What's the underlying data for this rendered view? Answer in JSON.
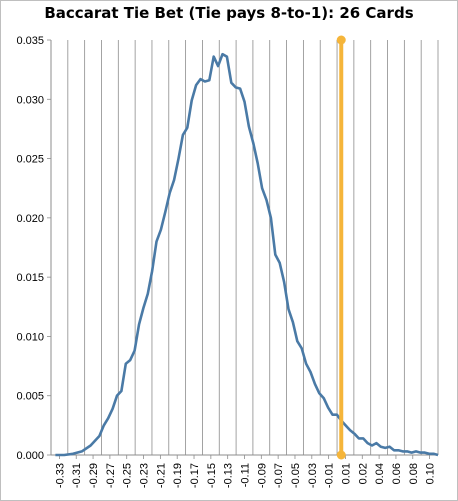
{
  "chart_data": {
    "type": "line",
    "title": "Baccarat Tie Bet (Tie pays 8-to-1): 26 Cards",
    "xlabel": "",
    "ylabel": "",
    "xlim": [
      -0.335,
      0.105
    ],
    "ylim": [
      0,
      0.035
    ],
    "yticks": [
      "0.000",
      "0.005",
      "0.010",
      "0.015",
      "0.020",
      "0.025",
      "0.030",
      "0.035"
    ],
    "xticks": [
      "-0.33",
      "-0.31",
      "-0.29",
      "-0.27",
      "-0.25",
      "-0.23",
      "-0.21",
      "-0.19",
      "-0.17",
      "-0.15",
      "-0.13",
      "-0.11",
      "-0.09",
      "-0.07",
      "-0.05",
      "-0.03",
      "-0.01",
      "0.01",
      "0.02",
      "0.04",
      "0.06",
      "0.08",
      "0.10"
    ],
    "grid": "vertical",
    "series": [
      {
        "color": "#4a7aa6",
        "points": [
          [
            -0.33,
            0.0
          ],
          [
            -0.32,
            0.0
          ],
          [
            -0.31,
            0.0001
          ],
          [
            -0.3,
            0.0003
          ],
          [
            -0.29,
            0.0008
          ],
          [
            -0.28,
            0.0016
          ],
          [
            -0.275,
            0.0025
          ],
          [
            -0.27,
            0.0031
          ],
          [
            -0.265,
            0.0039
          ],
          [
            -0.26,
            0.005
          ],
          [
            -0.255,
            0.0054
          ],
          [
            -0.25,
            0.0077
          ],
          [
            -0.245,
            0.008
          ],
          [
            -0.24,
            0.0088
          ],
          [
            -0.235,
            0.011
          ],
          [
            -0.23,
            0.0124
          ],
          [
            -0.225,
            0.0136
          ],
          [
            -0.22,
            0.0155
          ],
          [
            -0.215,
            0.018
          ],
          [
            -0.21,
            0.019
          ],
          [
            -0.205,
            0.0205
          ],
          [
            -0.2,
            0.0221
          ],
          [
            -0.195,
            0.0232
          ],
          [
            -0.19,
            0.025
          ],
          [
            -0.185,
            0.027
          ],
          [
            -0.18,
            0.0276
          ],
          [
            -0.175,
            0.0299
          ],
          [
            -0.17,
            0.0312
          ],
          [
            -0.165,
            0.0317
          ],
          [
            -0.16,
            0.0315
          ],
          [
            -0.155,
            0.0316
          ],
          [
            -0.15,
            0.0336
          ],
          [
            -0.145,
            0.0328
          ],
          [
            -0.14,
            0.0338
          ],
          [
            -0.135,
            0.0336
          ],
          [
            -0.13,
            0.0314
          ],
          [
            -0.125,
            0.031
          ],
          [
            -0.12,
            0.0309
          ],
          [
            -0.115,
            0.0298
          ],
          [
            -0.11,
            0.0277
          ],
          [
            -0.105,
            0.0263
          ],
          [
            -0.1,
            0.0246
          ],
          [
            -0.095,
            0.0225
          ],
          [
            -0.09,
            0.0215
          ],
          [
            -0.085,
            0.02
          ],
          [
            -0.08,
            0.0169
          ],
          [
            -0.075,
            0.0162
          ],
          [
            -0.07,
            0.0146
          ],
          [
            -0.065,
            0.0123
          ],
          [
            -0.06,
            0.0112
          ],
          [
            -0.055,
            0.0096
          ],
          [
            -0.05,
            0.009
          ],
          [
            -0.045,
            0.0077
          ],
          [
            -0.04,
            0.007
          ],
          [
            -0.035,
            0.006
          ],
          [
            -0.03,
            0.0052
          ],
          [
            -0.025,
            0.0048
          ],
          [
            -0.02,
            0.004
          ],
          [
            -0.015,
            0.0034
          ],
          [
            -0.01,
            0.0034
          ],
          [
            -0.005,
            0.0029
          ],
          [
            0.0,
            0.0025
          ],
          [
            0.005,
            0.0021
          ],
          [
            0.01,
            0.0018
          ],
          [
            0.015,
            0.0014
          ],
          [
            0.02,
            0.0014
          ],
          [
            0.025,
            0.001
          ],
          [
            0.03,
            0.0008
          ],
          [
            0.035,
            0.001
          ],
          [
            0.04,
            0.0007
          ],
          [
            0.045,
            0.0006
          ],
          [
            0.05,
            0.0007
          ],
          [
            0.055,
            0.0004
          ],
          [
            0.06,
            0.0004
          ],
          [
            0.065,
            0.0003
          ],
          [
            0.07,
            0.0003
          ],
          [
            0.075,
            0.0002
          ],
          [
            0.08,
            0.0003
          ],
          [
            0.085,
            0.0002
          ],
          [
            0.09,
            0.0002
          ],
          [
            0.095,
            0.0001
          ],
          [
            0.1,
            0.0001
          ],
          [
            0.105,
            0.0
          ]
        ]
      },
      {
        "color": "#f5b53a",
        "points": [
          [
            -0.005,
            0.0
          ],
          [
            -0.005,
            0.035
          ]
        ]
      }
    ]
  }
}
